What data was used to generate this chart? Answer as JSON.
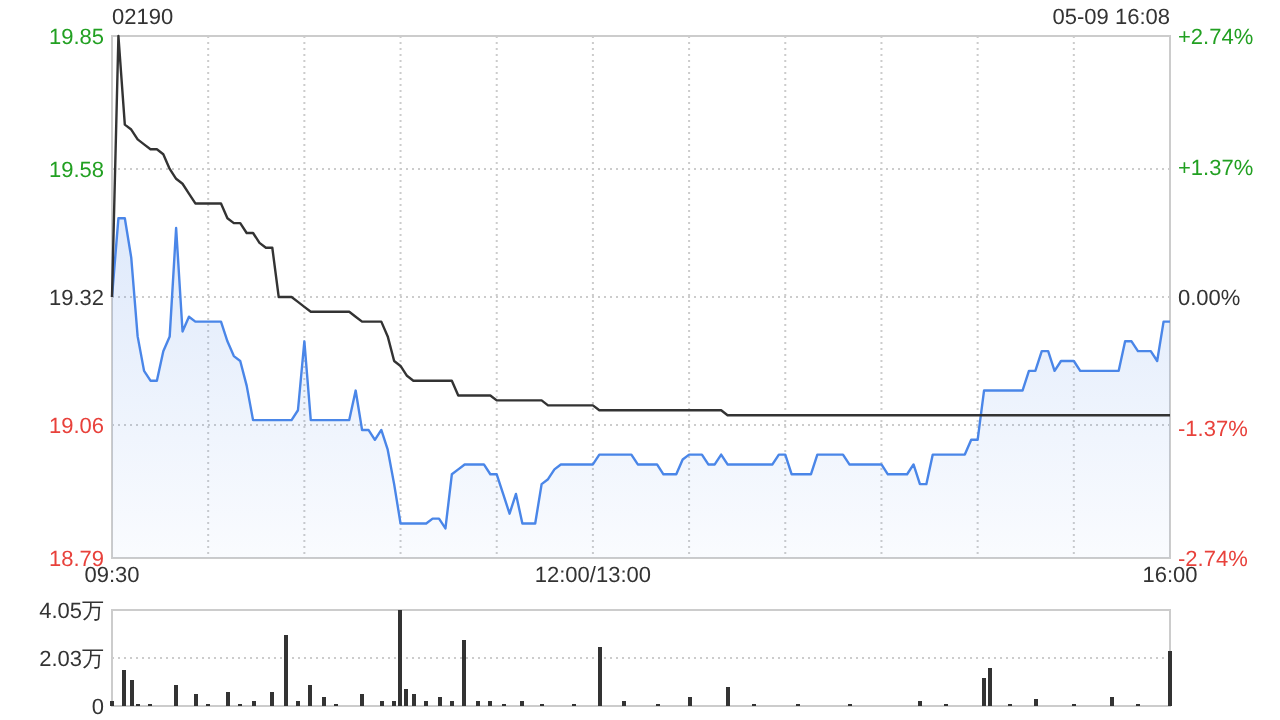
{
  "chart_data": [
    {
      "type": "area",
      "title": "02190",
      "annotations": [
        "05-09 16:08"
      ],
      "categories": [
        "09:30",
        null,
        null,
        null,
        null,
        null,
        null,
        null,
        null,
        null,
        null,
        null,
        null,
        null,
        null,
        null,
        null,
        null,
        null,
        null,
        null,
        null,
        null,
        null,
        null,
        null,
        null,
        null,
        null,
        null,
        null,
        null,
        null,
        null,
        null,
        null,
        null,
        null,
        null,
        null,
        null,
        null,
        null,
        null,
        null,
        null,
        null,
        null,
        null,
        null,
        null,
        null,
        null,
        null,
        null,
        null,
        null,
        null,
        null,
        null,
        null,
        null,
        null,
        null,
        null,
        null,
        null,
        null,
        null,
        null,
        null,
        null,
        null,
        null,
        null,
        "12:00/13:00",
        null,
        null,
        null,
        null,
        null,
        null,
        null,
        null,
        null,
        null,
        null,
        null,
        null,
        null,
        null,
        null,
        null,
        null,
        null,
        null,
        null,
        null,
        null,
        null,
        null,
        null,
        null,
        null,
        null,
        null,
        null,
        null,
        null,
        null,
        null,
        null,
        null,
        null,
        null,
        null,
        null,
        null,
        null,
        null,
        null,
        null,
        null,
        null,
        null,
        null,
        null,
        null,
        null,
        null,
        null,
        null,
        null,
        null,
        null,
        null,
        null,
        null,
        null,
        null,
        null,
        null,
        null,
        null,
        null,
        null,
        null,
        null,
        null,
        null,
        null,
        null,
        null,
        null,
        null,
        null,
        null,
        null,
        null,
        null,
        null,
        null,
        null,
        null,
        null,
        "16:00"
      ],
      "series": [
        {
          "color": "#4a86e8",
          "values": [
            19.32,
            19.48,
            19.48,
            19.4,
            19.24,
            19.17,
            19.15,
            19.15,
            19.21,
            19.24,
            19.46,
            19.25,
            19.28,
            19.27,
            19.27,
            19.27,
            19.27,
            19.27,
            19.23,
            19.2,
            19.19,
            19.14,
            19.07,
            19.07,
            19.07,
            19.07,
            19.07,
            19.07,
            19.07,
            19.09,
            19.23,
            19.07,
            19.07,
            19.07,
            19.07,
            19.07,
            19.07,
            19.07,
            19.13,
            19.05,
            19.05,
            19.03,
            19.05,
            19.01,
            18.94,
            18.86,
            18.86,
            18.86,
            18.86,
            18.86,
            18.87,
            18.87,
            18.85,
            18.96,
            18.97,
            18.98,
            18.98,
            18.98,
            18.98,
            18.96,
            18.96,
            18.92,
            18.88,
            18.92,
            18.86,
            18.86,
            18.86,
            18.94,
            18.95,
            18.97,
            18.98,
            18.98,
            18.98,
            18.98,
            18.98,
            18.98,
            19.0,
            19.0,
            19.0,
            19.0,
            19.0,
            19.0,
            18.98,
            18.98,
            18.98,
            18.98,
            18.96,
            18.96,
            18.96,
            18.99,
            19.0,
            19.0,
            19.0,
            18.98,
            18.98,
            19.0,
            18.98,
            18.98,
            18.98,
            18.98,
            18.98,
            18.98,
            18.98,
            18.98,
            19.0,
            19.0,
            18.96,
            18.96,
            18.96,
            18.96,
            19.0,
            19.0,
            19.0,
            19.0,
            19.0,
            18.98,
            18.98,
            18.98,
            18.98,
            18.98,
            18.98,
            18.96,
            18.96,
            18.96,
            18.96,
            18.98,
            18.94,
            18.94,
            19.0,
            19.0,
            19.0,
            19.0,
            19.0,
            19.0,
            19.03,
            19.03,
            19.13,
            19.13,
            19.13,
            19.13,
            19.13,
            19.13,
            19.13,
            19.17,
            19.17,
            19.21,
            19.21,
            19.17,
            19.19,
            19.19,
            19.19,
            19.17,
            19.17,
            19.17,
            19.17,
            19.17,
            19.17,
            19.17,
            19.23,
            19.23,
            19.21,
            19.21,
            19.21,
            19.19,
            19.27,
            19.27
          ]
        },
        {
          "type": "line",
          "color": "#333333",
          "values": [
            19.32,
            19.85,
            19.67,
            19.66,
            19.64,
            19.63,
            19.62,
            19.62,
            19.61,
            19.58,
            19.56,
            19.55,
            19.53,
            19.51,
            19.51,
            19.51,
            19.51,
            19.51,
            19.48,
            19.47,
            19.47,
            19.45,
            19.45,
            19.43,
            19.42,
            19.42,
            19.32,
            19.32,
            19.32,
            19.31,
            19.3,
            19.29,
            19.29,
            19.29,
            19.29,
            19.29,
            19.29,
            19.29,
            19.28,
            19.27,
            19.27,
            19.27,
            19.27,
            19.24,
            19.19,
            19.18,
            19.16,
            19.15,
            19.15,
            19.15,
            19.15,
            19.15,
            19.15,
            19.15,
            19.12,
            19.12,
            19.12,
            19.12,
            19.12,
            19.12,
            19.11,
            19.11,
            19.11,
            19.11,
            19.11,
            19.11,
            19.11,
            19.11,
            19.1,
            19.1,
            19.1,
            19.1,
            19.1,
            19.1,
            19.1,
            19.1,
            19.09,
            19.09,
            19.09,
            19.09,
            19.09,
            19.09,
            19.09,
            19.09,
            19.09,
            19.09,
            19.09,
            19.09,
            19.09,
            19.09,
            19.09,
            19.09,
            19.09,
            19.09,
            19.09,
            19.09,
            19.08,
            19.08,
            19.08,
            19.08,
            19.08,
            19.08,
            19.08,
            19.08,
            19.08,
            19.08,
            19.08,
            19.08,
            19.08,
            19.08,
            19.08,
            19.08,
            19.08,
            19.08,
            19.08,
            19.08,
            19.08,
            19.08,
            19.08,
            19.08,
            19.08,
            19.08,
            19.08,
            19.08,
            19.08,
            19.08,
            19.08,
            19.08,
            19.08,
            19.08,
            19.08,
            19.08,
            19.08,
            19.08,
            19.08,
            19.08,
            19.08,
            19.08,
            19.08,
            19.08,
            19.08,
            19.08,
            19.08,
            19.08,
            19.08,
            19.08,
            19.08,
            19.08,
            19.08,
            19.08,
            19.08,
            19.08,
            19.08,
            19.08,
            19.08,
            19.08,
            19.08,
            19.08,
            19.08,
            19.08,
            19.08,
            19.08,
            19.08,
            19.08,
            19.08,
            19.08
          ]
        }
      ],
      "ylim": [
        18.79,
        19.85
      ],
      "yticks": [
        18.79,
        19.06,
        19.32,
        19.58,
        19.85
      ],
      "y2lim": [
        -2.74,
        2.74
      ],
      "y2ticks": [
        {
          "value": -2.74,
          "label": "-2.74%"
        },
        {
          "value": -1.37,
          "label": "-1.37%"
        },
        {
          "value": 0,
          "label": "0.00%"
        },
        {
          "value": 1.37,
          "label": "+1.37%"
        },
        {
          "value": 2.74,
          "label": "+2.74%"
        }
      ],
      "grid": true
    },
    {
      "type": "bar",
      "color": "#333333",
      "categories": [
        null,
        null,
        null,
        null,
        null,
        null,
        null,
        null,
        null,
        null,
        null,
        null,
        null,
        null,
        null,
        null,
        null,
        null,
        null,
        null,
        null,
        null,
        null,
        null,
        null,
        null,
        null,
        null,
        null,
        null,
        null,
        null,
        null,
        null,
        null,
        null,
        null,
        null,
        null,
        null,
        null,
        null,
        null,
        null,
        null,
        null,
        null,
        null,
        null,
        null,
        null,
        null,
        null,
        null,
        null,
        null,
        null,
        null,
        null,
        null,
        null,
        null,
        null,
        null,
        null,
        null,
        null,
        null,
        null,
        null,
        null,
        null,
        null,
        null,
        null,
        null,
        null,
        null,
        null,
        null,
        null,
        null,
        null,
        null,
        null,
        null,
        null,
        null,
        null,
        null,
        null,
        null,
        null,
        null,
        null,
        null,
        null,
        null,
        null,
        null,
        null,
        null,
        null,
        null,
        null,
        null,
        null,
        null,
        null,
        null,
        null,
        null,
        null,
        null,
        null,
        null,
        null,
        null,
        null,
        null,
        null,
        null,
        null,
        null,
        null,
        null,
        null,
        null,
        null,
        null,
        null,
        null,
        null,
        null,
        null,
        null,
        null,
        null,
        null,
        null,
        null,
        null,
        null,
        null,
        null,
        null,
        null,
        null,
        null,
        null,
        null,
        null,
        null,
        null,
        null,
        null,
        null,
        null,
        null,
        null,
        null,
        null,
        null,
        null,
        null,
        null
      ],
      "values": [
        0.2,
        0,
        1.5,
        1.1,
        0.1,
        0,
        0.1,
        0,
        0,
        0,
        0.9,
        0,
        0,
        0.5,
        0,
        0.1,
        0,
        0,
        0.6,
        0,
        0.1,
        0,
        0.2,
        0,
        0,
        0.6,
        0,
        3.0,
        0,
        0.2,
        0,
        0.9,
        0,
        0.4,
        0,
        0.1,
        0,
        0,
        0,
        0.5,
        0,
        0,
        0.2,
        0,
        0.2,
        4.05,
        0.7,
        0.5,
        0,
        0.2,
        0,
        0.4,
        0,
        0.2,
        0,
        2.8,
        0,
        0.2,
        0,
        0.2,
        0,
        0.1,
        0,
        0,
        0.2,
        0,
        0,
        0.1,
        0,
        0,
        0,
        0,
        0.1,
        0,
        0,
        0,
        2.5,
        0,
        0,
        0,
        0.2,
        0,
        0,
        0,
        0,
        0.1,
        0,
        0,
        0,
        0,
        0.4,
        0,
        0,
        0,
        0,
        0,
        0.8,
        0,
        0,
        0,
        0.1,
        0,
        0,
        0,
        0,
        0,
        0,
        0.1,
        0,
        0,
        0,
        0,
        0,
        0,
        0,
        0.1,
        0,
        0,
        0,
        0,
        0,
        0,
        0,
        0,
        0,
        0,
        0.2,
        0,
        0,
        0,
        0.1,
        0,
        0,
        0,
        0,
        0,
        1.2,
        1.6,
        0,
        0,
        0.1,
        0,
        0,
        0,
        0.3,
        0,
        0,
        0,
        0,
        0,
        0.1,
        0,
        0,
        0,
        0,
        0,
        0.4,
        0,
        0,
        0,
        0.1,
        0,
        0,
        0,
        0,
        2.3
      ],
      "ylim": [
        0,
        4.05
      ],
      "yticks": [
        0,
        {
          "value": 2.03,
          "label": "2.03万"
        },
        {
          "value": 4.05,
          "label": "4.05万"
        }
      ],
      "grid": "y",
      "tick_labels": "y"
    }
  ]
}
